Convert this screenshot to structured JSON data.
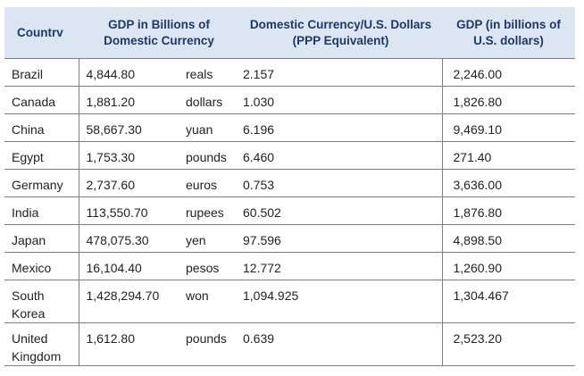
{
  "headers": {
    "country": "Countrv",
    "gdp_domestic": "GDP in Billions of Domestic Currency",
    "rate": "Domestic Currency/U.S. Dollars (PPP Equivalent)",
    "gdp_usd": "GDP (in billions of U.S. dollars)"
  },
  "rows": [
    {
      "country": "Brazil",
      "gdp": "4,844.80",
      "unit": "reals",
      "rate": "2.157",
      "usd": "2,246.00"
    },
    {
      "country": "Canada",
      "gdp": "1,881.20",
      "unit": "dollars",
      "rate": "1.030",
      "usd": "1,826.80"
    },
    {
      "country": "China",
      "gdp": "58,667.30",
      "unit": "yuan",
      "rate": "6.196",
      "usd": "9,469.10"
    },
    {
      "country": "Egypt",
      "gdp": "1,753.30",
      "unit": "pounds",
      "rate": "6.460",
      "usd": "271.40"
    },
    {
      "country": "Germany",
      "gdp": "2,737.60",
      "unit": "euros",
      "rate": "0.753",
      "usd": "3,636.00"
    },
    {
      "country": "India",
      "gdp": "113,550.70",
      "unit": "rupees",
      "rate": "60.502",
      "usd": "1,876.80"
    },
    {
      "country": "Japan",
      "gdp": "478,075.30",
      "unit": "yen",
      "rate": "97.596",
      "usd": "4,898.50"
    },
    {
      "country": "Mexico",
      "gdp": "16,104.40",
      "unit": "pesos",
      "rate": "12.772",
      "usd": "1,260.90"
    },
    {
      "country": "South Korea",
      "gdp": "1,428,294.70",
      "unit": "won",
      "rate": "1,094.925",
      "usd": "1,304.467"
    },
    {
      "country": "United Kingdom",
      "gdp": "1,612.80",
      "unit": "pounds",
      "rate": "0.639",
      "usd": "2,523.20"
    }
  ]
}
